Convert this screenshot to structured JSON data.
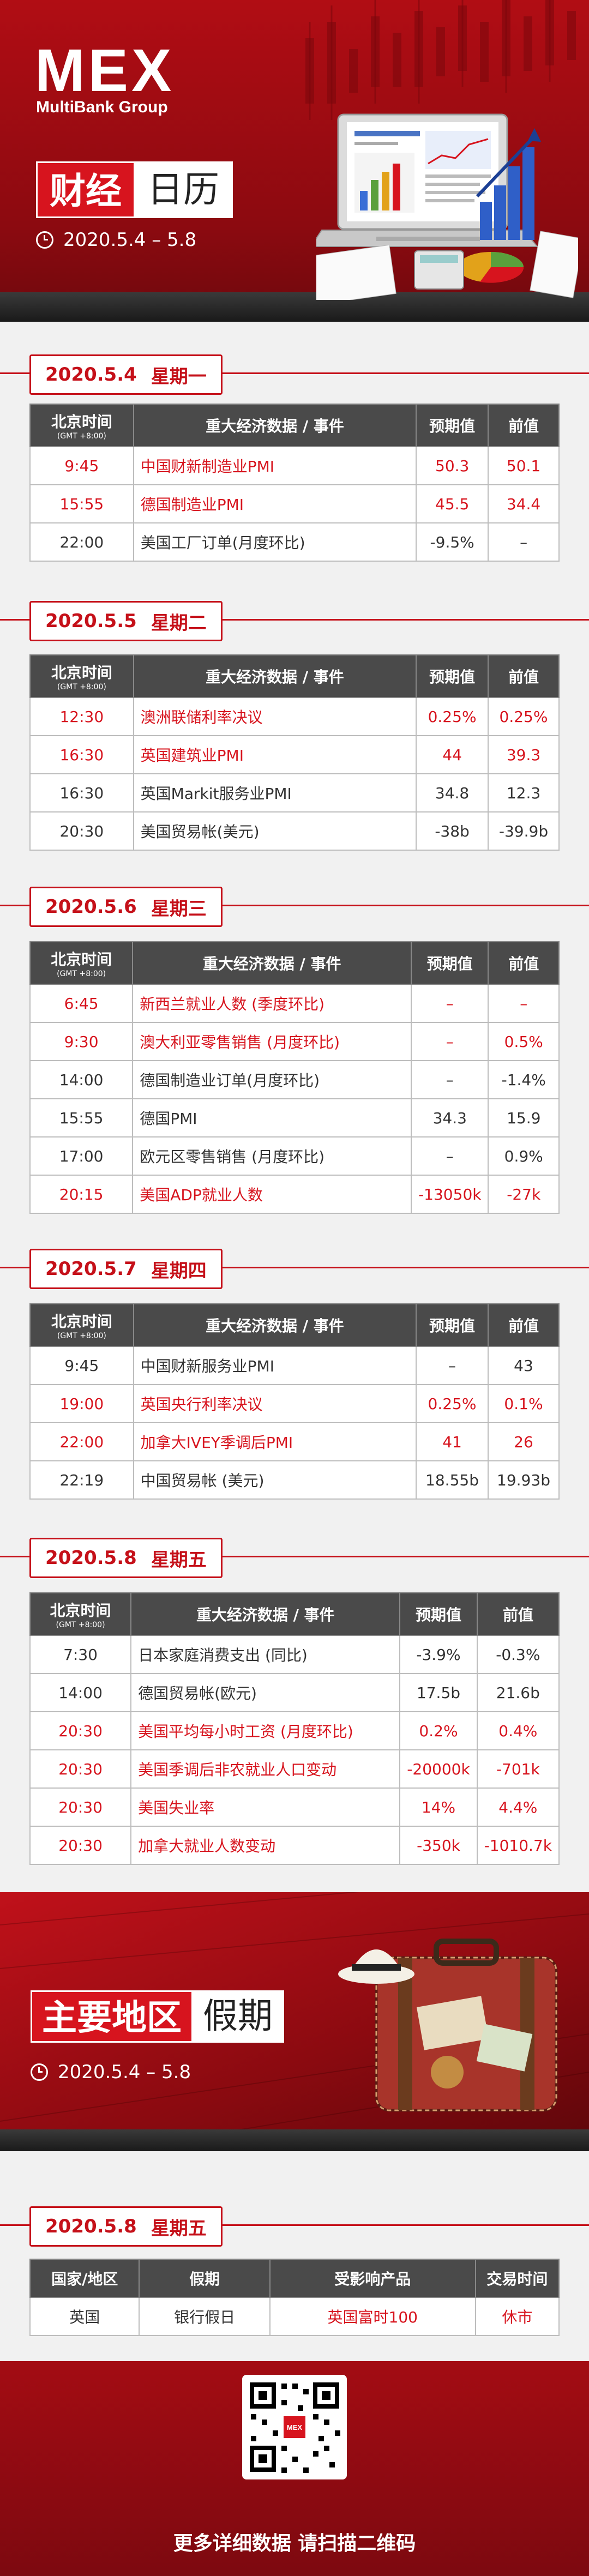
{
  "header": {
    "logo": "MEX",
    "logo_sub": "MultiBank Group",
    "title_red": "财经",
    "title_white": "日历",
    "date_range": "2020.5.4 – 5.8"
  },
  "table_headers": {
    "time": "北京时间",
    "time_sub": "(GMT +8:00)",
    "event": "重大经济数据 / 事件",
    "forecast": "预期值",
    "previous": "前值"
  },
  "days": [
    {
      "date": "2020.5.4",
      "weekday": "星期一",
      "rows": [
        {
          "time": "9:45",
          "event": "中国财新制造业PMI",
          "forecast": "50.3",
          "previous": "50.1",
          "highlight": true
        },
        {
          "time": "15:55",
          "event": "德国制造业PMI",
          "forecast": "45.5",
          "previous": "34.4",
          "highlight": true
        },
        {
          "time": "22:00",
          "event": "美国工厂订单(月度环比)",
          "forecast": "-9.5%",
          "previous": "–",
          "highlight": false
        }
      ]
    },
    {
      "date": "2020.5.5",
      "weekday": "星期二",
      "rows": [
        {
          "time": "12:30",
          "event": "澳洲联储利率决议",
          "forecast": "0.25%",
          "previous": "0.25%",
          "highlight": true
        },
        {
          "time": "16:30",
          "event": "英国建筑业PMI",
          "forecast": "44",
          "previous": "39.3",
          "highlight": true
        },
        {
          "time": "16:30",
          "event": "英国Markit服务业PMI",
          "forecast": "34.8",
          "previous": "12.3",
          "highlight": false
        },
        {
          "time": "20:30",
          "event": "美国贸易帐(美元)",
          "forecast": "-38b",
          "previous": "-39.9b",
          "highlight": false
        }
      ]
    },
    {
      "date": "2020.5.6",
      "weekday": "星期三",
      "rows": [
        {
          "time": "6:45",
          "event": "新西兰就业人数 (季度环比)",
          "forecast": "–",
          "previous": "–",
          "highlight": true
        },
        {
          "time": "9:30",
          "event": "澳大利亚零售销售 (月度环比)",
          "forecast": "–",
          "previous": "0.5%",
          "highlight": true
        },
        {
          "time": "14:00",
          "event": "德国制造业订单(月度环比)",
          "forecast": "–",
          "previous": "-1.4%",
          "highlight": false
        },
        {
          "time": "15:55",
          "event": "德国PMI",
          "forecast": "34.3",
          "previous": "15.9",
          "highlight": false
        },
        {
          "time": "17:00",
          "event": "欧元区零售销售 (月度环比)",
          "forecast": "–",
          "previous": "0.9%",
          "highlight": false
        },
        {
          "time": "20:15",
          "event": "美国ADP就业人数",
          "forecast": "-13050k",
          "previous": "-27k",
          "highlight": true
        }
      ]
    },
    {
      "date": "2020.5.7",
      "weekday": "星期四",
      "rows": [
        {
          "time": "9:45",
          "event": "中国财新服务业PMI",
          "forecast": "–",
          "previous": "43",
          "highlight": false
        },
        {
          "time": "19:00",
          "event": "英国央行利率决议",
          "forecast": "0.25%",
          "previous": "0.1%",
          "highlight": true
        },
        {
          "time": "22:00",
          "event": "加拿大IVEY季调后PMI",
          "forecast": "41",
          "previous": "26",
          "highlight": true
        },
        {
          "time": "22:19",
          "event": "中国贸易帐 (美元)",
          "forecast": "18.55b",
          "previous": "19.93b",
          "highlight": false
        }
      ]
    },
    {
      "date": "2020.5.8",
      "weekday": "星期五",
      "rows": [
        {
          "time": "7:30",
          "event": "日本家庭消费支出 (同比)",
          "forecast": "-3.9%",
          "previous": "-0.3%",
          "highlight": false
        },
        {
          "time": "14:00",
          "event": "德国贸易帐(欧元)",
          "forecast": "17.5b",
          "previous": "21.6b",
          "highlight": false
        },
        {
          "time": "20:30",
          "event": "美国平均每小时工资 (月度环比)",
          "forecast": "0.2%",
          "previous": "0.4%",
          "highlight": true
        },
        {
          "time": "20:30",
          "event": "美国季调后非农就业人口变动",
          "forecast": "-20000k",
          "previous": "-701k",
          "highlight": true
        },
        {
          "time": "20:30",
          "event": "美国失业率",
          "forecast": "14%",
          "previous": "4.4%",
          "highlight": true
        },
        {
          "time": "20:30",
          "event": "加拿大就业人数变动",
          "forecast": "-350k",
          "previous": "-1010.7k",
          "highlight": true
        }
      ]
    }
  ],
  "holiday": {
    "title_red": "主要地区",
    "title_white": "假期",
    "date_range": "2020.5.4 – 5.8",
    "day_date": "2020.5.8",
    "day_weekday": "星期五",
    "headers": {
      "region": "国家/地区",
      "holiday": "假期",
      "product": "受影响产品",
      "time": "交易时间"
    },
    "rows": [
      {
        "region": "英国",
        "holiday": "银行假日",
        "product": "英国富时100",
        "time": "休市"
      }
    ]
  },
  "footer": {
    "qr_label": "MEX",
    "text": "更多详细数据 请扫描二维码"
  }
}
